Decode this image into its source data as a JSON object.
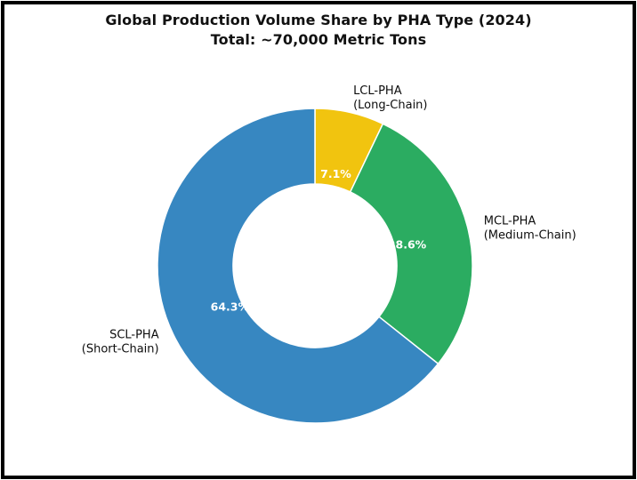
{
  "title": {
    "line1": "Global Production Volume Share by PHA Type (2024)",
    "line2": "Total: ~70,000 Metric Tons"
  },
  "chart_data": {
    "type": "pie",
    "variant": "donut",
    "title": "Global Production Volume Share by PHA Type (2024)",
    "subtitle": "Total: ~70,000 Metric Tons",
    "total": "~70,000 Metric Tons",
    "units": "percent of global production volume",
    "start": "top",
    "direction": "clockwise",
    "inner_radius_ratio": 0.52,
    "pct_label_distance": 0.6,
    "label_distance": 1.1,
    "legend": "none",
    "slices": [
      {
        "label": "LCL-PHA",
        "sublabel": "(Long-Chain)",
        "value": 7.1,
        "pct_label": "7.1%",
        "color": "#f1c40f"
      },
      {
        "label": "MCL-PHA",
        "sublabel": "(Medium-Chain)",
        "value": 28.6,
        "pct_label": "28.6%",
        "color": "#2bac61"
      },
      {
        "label": "SCL-PHA",
        "sublabel": "(Short-Chain)",
        "value": 64.3,
        "pct_label": "64.3%",
        "color": "#3787c1"
      }
    ],
    "colors": {
      "pct_text": "#ffffff",
      "label_text": "#0d0d0d",
      "wedge_edge": "#ffffff",
      "background": "#ffffff",
      "frame": "#000000"
    }
  }
}
